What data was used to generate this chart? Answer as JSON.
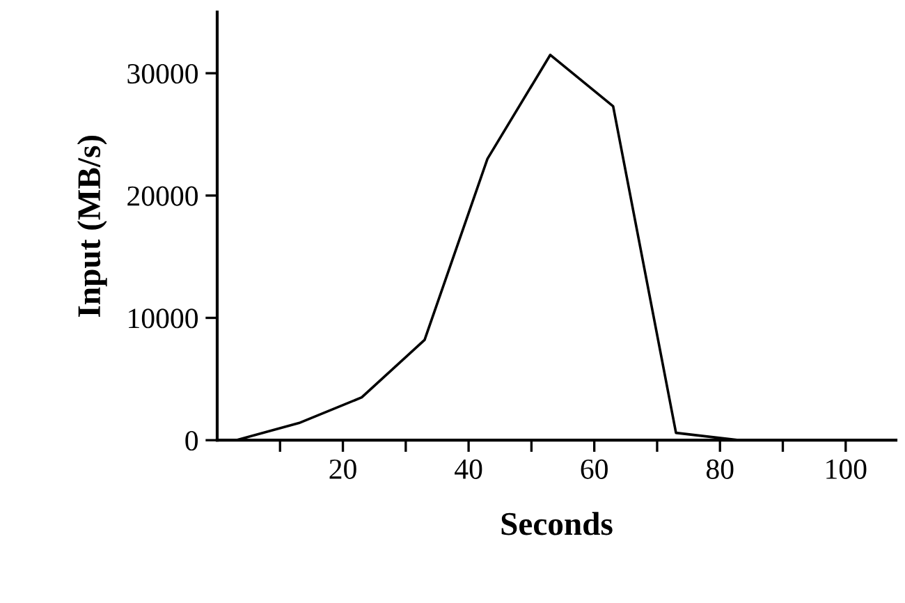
{
  "chart_data": {
    "type": "line",
    "xlabel": "Seconds",
    "ylabel": "Input (MB/s)",
    "x": [
      3,
      13,
      23,
      33,
      43,
      53,
      63,
      73,
      83
    ],
    "series": [
      {
        "color": "#000000",
        "values": [
          0,
          1400,
          3500,
          8200,
          23000,
          31500,
          27300,
          600,
          0
        ]
      }
    ],
    "xlim": [
      0,
      108
    ],
    "ylim": [
      0,
      35000
    ],
    "xticks": [
      {
        "value": 10,
        "label": null
      },
      20,
      {
        "value": 30,
        "label": null
      },
      40,
      {
        "value": 50,
        "label": null
      },
      60,
      {
        "value": 70,
        "label": null
      },
      80,
      {
        "value": 90,
        "label": null
      },
      100
    ],
    "yticks": [
      0,
      10000,
      20000,
      30000
    ],
    "grid": false,
    "legend": false,
    "marker": "none",
    "line_style": "solid"
  }
}
